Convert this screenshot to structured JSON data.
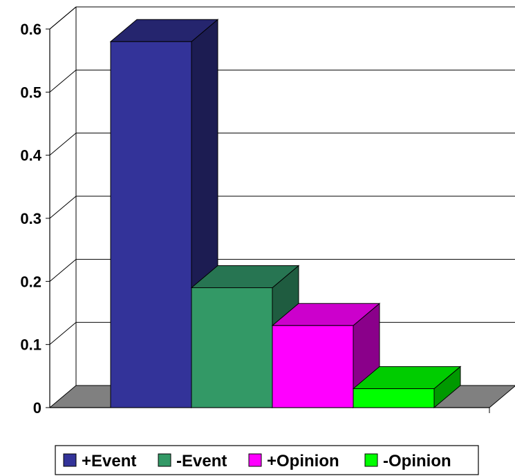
{
  "chart_data": {
    "type": "bar",
    "style": "3d",
    "title": "",
    "xlabel": "",
    "ylabel": "",
    "categories": [
      "+Event",
      "-Event",
      "+Opinion",
      "-Opinion"
    ],
    "values": [
      0.58,
      0.19,
      0.13,
      0.03
    ],
    "ylim": [
      0,
      0.6
    ],
    "yticks": [
      "0",
      "0.1",
      "0.2",
      "0.3",
      "0.4",
      "0.5",
      "0.6"
    ],
    "grid": true,
    "legend": {
      "placement": "bottom",
      "entries": [
        "+Event",
        "-Event",
        "+Opinion",
        "-Opinion"
      ]
    },
    "colors": {
      "front": [
        "#333399",
        "#339966",
        "#ff00ff",
        "#00ff00"
      ],
      "top": [
        "#25256e",
        "#277552",
        "#cc00cc",
        "#00cc00"
      ],
      "side": [
        "#1c1c52",
        "#1f5c40",
        "#8a008a",
        "#009900"
      ],
      "floor": "#808080"
    }
  }
}
